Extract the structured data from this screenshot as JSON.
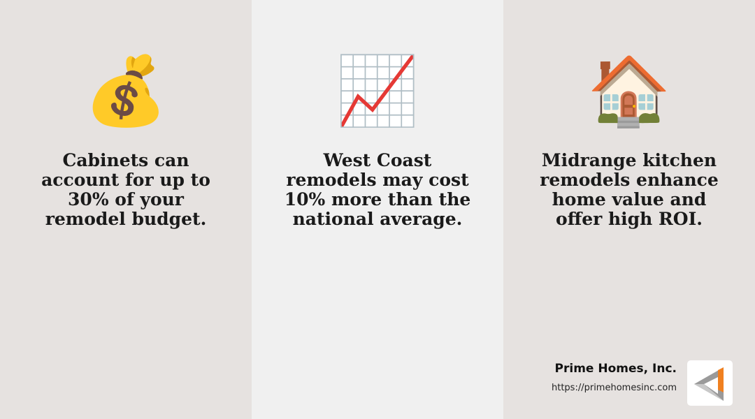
{
  "panels": [
    {
      "icon": "money-bag-icon",
      "emoji": "💰",
      "text": "Cabinets can account for up to 30% of your remodel budget."
    },
    {
      "icon": "chart-increasing-icon",
      "emoji": "📈",
      "text": "West Coast remodels may cost 10% more than the national average."
    },
    {
      "icon": "house-icon",
      "emoji": "🏠",
      "text": "Midrange kitchen remodels enhance home value and offer high ROI."
    }
  ],
  "brand": {
    "name": "Prime Homes, Inc.",
    "url": "https://primehomesinc.com",
    "accent": "#f08020"
  }
}
